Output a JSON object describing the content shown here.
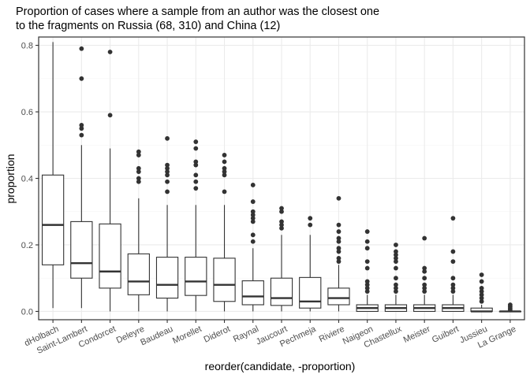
{
  "chart_data": {
    "type": "boxplot",
    "title": "Proportion of cases where a sample from an author was the closest one to the fragments on Russia (68, 310) and China (12)",
    "title_lines": [
      "Proportion of cases where a sample from an author was the closest one",
      "to the fragments on Russia (68, 310) and China (12)"
    ],
    "xlabel": "reorder(candidate, -proportion)",
    "ylabel": "proportion",
    "ylim": [
      -0.025,
      0.825
    ],
    "yticks": [
      0.0,
      0.2,
      0.4,
      0.6,
      0.8
    ],
    "ytick_labels": [
      "0.0",
      "0.2",
      "0.4",
      "0.6",
      "0.8"
    ],
    "grid": true,
    "categories": [
      "dHolbach",
      "Saint-Lambert",
      "Condorcet",
      "Deleyre",
      "Baudeau",
      "Morellet",
      "Diderot",
      "Raynal",
      "Jaucourt",
      "Pechmeja",
      "Riviere",
      "Naigeon",
      "Chastellux",
      "Meister",
      "Guibert",
      "Jussieu",
      "La Grange"
    ],
    "boxes": [
      {
        "name": "dHolbach",
        "min": 0.01,
        "q1": 0.14,
        "median": 0.26,
        "q3": 0.41,
        "max": 0.81,
        "outliers": []
      },
      {
        "name": "Saint-Lambert",
        "min": 0.01,
        "q1": 0.1,
        "median": 0.145,
        "q3": 0.27,
        "max": 0.5,
        "outliers": [
          0.53,
          0.55,
          0.56,
          0.7,
          0.79
        ]
      },
      {
        "name": "Condorcet",
        "min": 0.0,
        "q1": 0.07,
        "median": 0.12,
        "q3": 0.263,
        "max": 0.49,
        "outliers": [
          0.59,
          0.78
        ]
      },
      {
        "name": "Deleyre",
        "min": 0.0,
        "q1": 0.05,
        "median": 0.09,
        "q3": 0.173,
        "max": 0.34,
        "outliers": [
          0.39,
          0.4,
          0.42,
          0.43,
          0.47,
          0.48
        ]
      },
      {
        "name": "Baudeau",
        "min": 0.0,
        "q1": 0.04,
        "median": 0.08,
        "q3": 0.163,
        "max": 0.32,
        "outliers": [
          0.36,
          0.39,
          0.41,
          0.42,
          0.43,
          0.44,
          0.52
        ]
      },
      {
        "name": "Morellet",
        "min": 0.0,
        "q1": 0.048,
        "median": 0.09,
        "q3": 0.163,
        "max": 0.32,
        "outliers": [
          0.37,
          0.39,
          0.41,
          0.44,
          0.45,
          0.49,
          0.51
        ]
      },
      {
        "name": "Diderot",
        "min": 0.0,
        "q1": 0.03,
        "median": 0.08,
        "q3": 0.16,
        "max": 0.32,
        "outliers": [
          0.36,
          0.41,
          0.42,
          0.43,
          0.45,
          0.47
        ]
      },
      {
        "name": "Raynal",
        "min": 0.0,
        "q1": 0.02,
        "median": 0.045,
        "q3": 0.092,
        "max": 0.19,
        "outliers": [
          0.21,
          0.23,
          0.27,
          0.28,
          0.29,
          0.3,
          0.33,
          0.38
        ]
      },
      {
        "name": "Jaucourt",
        "min": 0.0,
        "q1": 0.018,
        "median": 0.04,
        "q3": 0.1,
        "max": 0.23,
        "outliers": [
          0.25,
          0.26,
          0.27,
          0.3,
          0.31
        ]
      },
      {
        "name": "Pechmeja",
        "min": 0.0,
        "q1": 0.01,
        "median": 0.03,
        "q3": 0.102,
        "max": 0.23,
        "outliers": [
          0.26,
          0.28
        ]
      },
      {
        "name": "Riviere",
        "min": 0.0,
        "q1": 0.02,
        "median": 0.04,
        "q3": 0.07,
        "max": 0.14,
        "outliers": [
          0.15,
          0.16,
          0.18,
          0.19,
          0.21,
          0.22,
          0.24,
          0.26,
          0.34
        ]
      },
      {
        "name": "Naigeon",
        "min": 0.0,
        "q1": 0.0,
        "median": 0.01,
        "q3": 0.02,
        "max": 0.05,
        "outliers": [
          0.06,
          0.07,
          0.08,
          0.09,
          0.13,
          0.15,
          0.19,
          0.21,
          0.24
        ]
      },
      {
        "name": "Chastellux",
        "min": 0.0,
        "q1": 0.0,
        "median": 0.01,
        "q3": 0.02,
        "max": 0.05,
        "outliers": [
          0.06,
          0.07,
          0.08,
          0.1,
          0.13,
          0.15,
          0.16,
          0.17,
          0.18,
          0.2
        ]
      },
      {
        "name": "Meister",
        "min": 0.0,
        "q1": 0.0,
        "median": 0.01,
        "q3": 0.02,
        "max": 0.05,
        "outliers": [
          0.06,
          0.07,
          0.08,
          0.1,
          0.12,
          0.13,
          0.22
        ]
      },
      {
        "name": "Guibert",
        "min": 0.0,
        "q1": 0.0,
        "median": 0.01,
        "q3": 0.02,
        "max": 0.05,
        "outliers": [
          0.06,
          0.07,
          0.08,
          0.1,
          0.15,
          0.18,
          0.28
        ]
      },
      {
        "name": "Jussieu",
        "min": 0.0,
        "q1": 0.0,
        "median": 0.0,
        "q3": 0.01,
        "max": 0.02,
        "outliers": [
          0.03,
          0.04,
          0.05,
          0.06,
          0.07,
          0.09,
          0.11
        ]
      },
      {
        "name": "La Grange",
        "min": 0.0,
        "q1": 0.0,
        "median": 0.0,
        "q3": 0.0,
        "max": 0.0,
        "outliers": [
          0.005,
          0.01,
          0.015,
          0.02
        ]
      }
    ],
    "colors": {
      "panel_background": "#ffffff",
      "panel_border": "#333333",
      "grid_major": "#ebebeb",
      "grid_minor": "#f5f5f5",
      "box_line": "#333333",
      "outlier": "#333333",
      "tick_label": "#4d4d4d"
    }
  }
}
